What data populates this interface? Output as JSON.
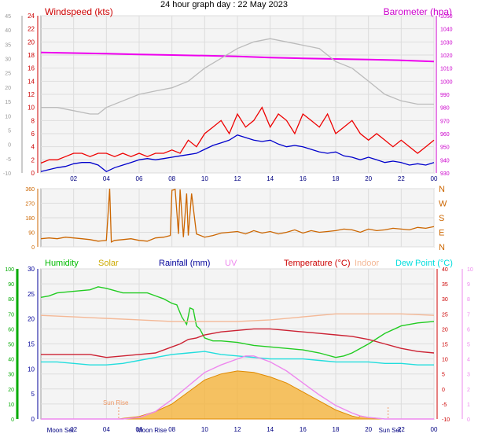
{
  "title": "24 hour graph day : 22 May 2023",
  "hour_ticks": [
    "02",
    "04",
    "06",
    "08",
    "10",
    "12",
    "14",
    "16",
    "18",
    "20",
    "22",
    "00"
  ],
  "chart_data": [
    {
      "type": "line",
      "id": "wind-baro",
      "legend": [
        {
          "name": "Windspeed (kts)",
          "color": "#cc0000",
          "position": "top-left"
        },
        {
          "name": "Barometer (hpa)",
          "color": "#cc00cc",
          "position": "top-right"
        }
      ],
      "x_unit": "hour of day (0–24)",
      "left_axis_outer": {
        "ticks": [
          "45",
          "40",
          "35",
          "30",
          "25",
          "20",
          "15",
          "10",
          "5",
          "0",
          "-5",
          "-10"
        ],
        "color": "#999999"
      },
      "left_axis_inner": {
        "ticks": [
          "24",
          "22",
          "20",
          "18",
          "16",
          "14",
          "12",
          "10",
          "8",
          "6",
          "4",
          "2",
          "0"
        ],
        "color": "#cc0000",
        "ylim": [
          0,
          24
        ]
      },
      "right_axis": {
        "ticks": [
          "1050",
          "1040",
          "1030",
          "1020",
          "1010",
          "1000",
          "990",
          "980",
          "970",
          "960",
          "950",
          "940",
          "930"
        ],
        "color": "#cc00cc",
        "ylim": [
          930,
          1050
        ]
      },
      "grid": true,
      "series": [
        {
          "name": "Barometer (hpa)",
          "color": "#ee00ee",
          "axis": "right",
          "x": [
            0,
            2,
            4,
            6,
            8,
            10,
            12,
            14,
            16,
            18,
            20,
            22,
            24
          ],
          "y": [
            1022,
            1021.5,
            1021,
            1020.5,
            1020,
            1019.5,
            1019,
            1018,
            1017.5,
            1017,
            1016.5,
            1016,
            1015
          ]
        },
        {
          "name": "",
          "color": "#bbbbbb",
          "axis": "left-inner",
          "x": [
            0,
            1,
            2,
            3,
            3.5,
            4,
            5,
            6,
            7,
            8,
            9,
            10,
            11,
            12,
            13,
            14,
            15,
            16,
            17,
            18,
            19,
            20,
            21,
            22,
            23,
            24
          ],
          "y": [
            10,
            10,
            9.5,
            9,
            9,
            10,
            11,
            12,
            12.5,
            13,
            14,
            16,
            17.5,
            19,
            20,
            20.5,
            20,
            19.5,
            19,
            17,
            16,
            14,
            12,
            11,
            10.5,
            10.5
          ]
        },
        {
          "name": "Windspeed (kts)",
          "color": "#ee0000",
          "axis": "left-inner",
          "x": [
            0,
            0.5,
            1,
            1.5,
            2,
            2.5,
            3,
            3.5,
            4,
            4.5,
            5,
            5.5,
            6,
            6.5,
            7,
            7.5,
            8,
            8.5,
            9,
            9.5,
            10,
            10.5,
            11,
            11.5,
            12,
            12.5,
            13,
            13.5,
            14,
            14.5,
            15,
            15.5,
            16,
            16.5,
            17,
            17.5,
            18,
            18.5,
            19,
            19.5,
            20,
            20.5,
            21,
            21.5,
            22,
            22.5,
            23,
            23.5,
            24
          ],
          "y": [
            1.5,
            2,
            2,
            2.5,
            3,
            3,
            2.5,
            3,
            3,
            2.5,
            3,
            2.5,
            3,
            2.5,
            3,
            3,
            3.5,
            3,
            5,
            4,
            6,
            7,
            8,
            6,
            9,
            7,
            8,
            10,
            7,
            9,
            8,
            6,
            9,
            8,
            7,
            9,
            6,
            7,
            8,
            6,
            5,
            6,
            5,
            4,
            5,
            4,
            3,
            4,
            5
          ]
        },
        {
          "name": "",
          "color": "#0000cc",
          "axis": "left-inner",
          "x": [
            0,
            0.5,
            1,
            1.5,
            2,
            2.5,
            3,
            3.5,
            4,
            4.5,
            5,
            5.5,
            6,
            6.5,
            7,
            7.5,
            8,
            8.5,
            9,
            9.5,
            10,
            10.5,
            11,
            11.5,
            12,
            12.5,
            13,
            13.5,
            14,
            14.5,
            15,
            15.5,
            16,
            16.5,
            17,
            17.5,
            18,
            18.5,
            19,
            19.5,
            20,
            20.5,
            21,
            21.5,
            22,
            22.5,
            23,
            23.5,
            24
          ],
          "y": [
            0.2,
            0.5,
            0.8,
            1,
            1.4,
            1.6,
            1.6,
            1.2,
            0.2,
            0.8,
            1.2,
            1.6,
            2,
            2.2,
            2,
            2.2,
            2.4,
            2.6,
            2.8,
            3,
            3.6,
            4.2,
            4.6,
            5,
            5.8,
            5.4,
            5,
            4.8,
            5,
            4.4,
            4,
            4.2,
            4,
            3.6,
            3.2,
            3,
            3.2,
            2.6,
            2.4,
            2,
            2.4,
            2,
            1.6,
            1.8,
            1.6,
            1.2,
            1.4,
            1.2,
            1.6
          ]
        }
      ]
    },
    {
      "type": "line",
      "id": "wind-direction",
      "legend": [],
      "x_unit": "hour of day (0–24)",
      "left_axis": {
        "ticks": [
          "360",
          "270",
          "180",
          "90",
          "0"
        ],
        "ylim": [
          0,
          360
        ]
      },
      "right_axis": {
        "ticks": [
          "N",
          "W",
          "S",
          "E",
          "N"
        ],
        "color": "#cc6600"
      },
      "grid": true,
      "series": [
        {
          "name": "",
          "color": "#cc6600",
          "x": [
            0,
            0.5,
            1,
            1.5,
            2,
            2.5,
            3,
            3.5,
            4,
            4.2,
            4.3,
            4.5,
            5,
            5.5,
            6,
            6.5,
            7,
            7.5,
            7.9,
            8,
            8.2,
            8.4,
            8.5,
            8.7,
            8.9,
            9,
            9.2,
            9.5,
            10,
            10.5,
            11,
            11.5,
            12,
            12.5,
            13,
            13.5,
            14,
            14.5,
            15,
            15.5,
            16,
            16.5,
            17,
            17.5,
            18,
            18.5,
            19,
            19.5,
            20,
            20.5,
            21,
            21.5,
            22,
            22.5,
            23,
            23.5,
            24
          ],
          "y": [
            50,
            55,
            50,
            60,
            55,
            50,
            45,
            35,
            40,
            360,
            30,
            40,
            45,
            50,
            40,
            35,
            55,
            60,
            70,
            350,
            355,
            80,
            355,
            60,
            330,
            70,
            330,
            80,
            60,
            70,
            85,
            90,
            95,
            80,
            100,
            85,
            95,
            80,
            90,
            105,
            85,
            100,
            90,
            95,
            100,
            110,
            105,
            90,
            110,
            100,
            105,
            115,
            110,
            105,
            120,
            115,
            125
          ]
        }
      ]
    },
    {
      "type": "area",
      "id": "temp-humidity",
      "legend": [
        {
          "name": "Humidity",
          "color": "#00bb00"
        },
        {
          "name": "Solar",
          "color": "#ccaa00"
        },
        {
          "name": "Rainfall (mm)",
          "color": "#000099"
        },
        {
          "name": "UV",
          "color": "#ee88ee"
        },
        {
          "name": "Temperature (°C)",
          "color": "#cc0000"
        },
        {
          "name": "Indoor",
          "color": "#f4b896"
        },
        {
          "name": "Dew Point (°C)",
          "color": "#00dddd"
        }
      ],
      "x_unit": "hour of day (0–24)",
      "humidity_axis": {
        "ticks": [
          "100",
          "90",
          "80",
          "70",
          "60",
          "50",
          "40",
          "30",
          "20",
          "10",
          "0"
        ],
        "color": "#00aa00",
        "ylim": [
          0,
          100
        ]
      },
      "rain_axis": {
        "ticks": [
          "30",
          "25",
          "20",
          "15",
          "10",
          "5",
          "0"
        ],
        "color": "#000099",
        "ylim": [
          0,
          30
        ]
      },
      "temp_axis": {
        "ticks": [
          "40",
          "35",
          "30",
          "25",
          "20",
          "15",
          "10",
          "5",
          "0",
          "-5",
          "-10"
        ],
        "color": "#cc0000",
        "ylim": [
          -10,
          40
        ]
      },
      "uv_axis": {
        "ticks": [
          "10",
          "9",
          "8",
          "7",
          "6",
          "5",
          "4",
          "3",
          "2",
          "1",
          "0"
        ],
        "color": "#ee88ee",
        "ylim": [
          0,
          10
        ]
      },
      "annotations": [
        "Sun Rise",
        "Moon Set",
        "Moon Rise",
        "Sun Set"
      ],
      "annotation_times": [
        4.75,
        2,
        6,
        21.2
      ],
      "grid": true,
      "series": [
        {
          "name": "Solar",
          "color": "#f5b030",
          "axis": "temp-rel",
          "x": [
            0,
            4.75,
            5,
            6,
            7,
            8,
            9,
            10,
            11,
            12,
            13,
            14,
            15,
            16,
            17,
            18,
            19,
            19.4,
            19.5,
            20,
            21,
            24
          ],
          "y": [
            0,
            0,
            0.2,
            0.8,
            2.5,
            5,
            9,
            13,
            15,
            16,
            15.5,
            14,
            12,
            9,
            6,
            3,
            1,
            0.5,
            1,
            0.5,
            0,
            0
          ]
        },
        {
          "name": "Humidity",
          "color": "#22cc22",
          "axis": "humidity",
          "x": [
            0,
            0.5,
            1,
            2,
            3,
            3.5,
            4,
            5,
            6,
            6.5,
            7,
            7.5,
            8,
            8.3,
            8.6,
            8.9,
            9.1,
            9.3,
            9.5,
            9.7,
            10,
            10.5,
            11,
            12,
            13,
            14,
            15,
            16,
            17,
            18,
            18.5,
            19,
            20,
            21,
            22,
            23,
            24
          ],
          "y": [
            81,
            82,
            84,
            85,
            86,
            88,
            87,
            84,
            84,
            84,
            82,
            80,
            77,
            76,
            68,
            63,
            74,
            73,
            62,
            60,
            54,
            52,
            52,
            51,
            49,
            48,
            47,
            46,
            44,
            41,
            42,
            44,
            50,
            57,
            62,
            64,
            65
          ]
        },
        {
          "name": "Temperature (°C)",
          "color": "#cc2233",
          "axis": "temp",
          "x": [
            0,
            1,
            2,
            3,
            4,
            5,
            6,
            7,
            8,
            8.5,
            9,
            9.5,
            10,
            11,
            12,
            13,
            14,
            15,
            16,
            17,
            18,
            19,
            20,
            21,
            22,
            23,
            24
          ],
          "y": [
            11.5,
            11.5,
            11.5,
            11.5,
            10.5,
            11,
            11.5,
            12,
            14,
            15,
            16.5,
            17,
            18,
            19,
            19.5,
            20,
            20,
            19.5,
            19,
            18.5,
            18,
            17.5,
            16.5,
            15,
            13.5,
            12.5,
            12
          ]
        },
        {
          "name": "Indoor",
          "color": "#f4b896",
          "axis": "temp",
          "x": [
            0,
            2,
            4,
            6,
            8,
            10,
            12,
            14,
            16,
            18,
            20,
            22,
            24
          ],
          "y": [
            24.5,
            24,
            23.5,
            23,
            22.5,
            22.5,
            22.5,
            23,
            24,
            25,
            25,
            25,
            24.5
          ]
        },
        {
          "name": "Dew Point (°C)",
          "color": "#22dddd",
          "axis": "temp",
          "x": [
            0,
            1,
            2,
            3,
            4,
            5,
            6,
            7,
            8,
            9,
            10,
            11,
            12,
            13,
            14,
            15,
            16,
            17,
            18,
            19,
            20,
            21,
            22,
            23,
            24
          ],
          "y": [
            9,
            9,
            8.5,
            8,
            8,
            8.5,
            9.5,
            10.5,
            11.5,
            12,
            12.5,
            11.5,
            11,
            10.5,
            10,
            10,
            10,
            9.5,
            9,
            9,
            9,
            8.5,
            8.5,
            8,
            8
          ]
        },
        {
          "name": "UV",
          "color": "#ee88ee",
          "axis": "uv",
          "x": [
            0,
            5,
            6,
            7,
            8,
            9,
            10,
            11,
            12,
            12.5,
            13,
            13.5,
            14,
            15,
            16,
            17,
            18,
            19,
            19.5,
            20,
            21,
            24
          ],
          "y": [
            0,
            0,
            0.1,
            0.5,
            1.3,
            2.2,
            3.1,
            3.6,
            4,
            4.2,
            4.2,
            4,
            3.8,
            3.2,
            2.4,
            1.6,
            0.9,
            0.4,
            0.2,
            0.1,
            0,
            0
          ]
        }
      ]
    }
  ]
}
